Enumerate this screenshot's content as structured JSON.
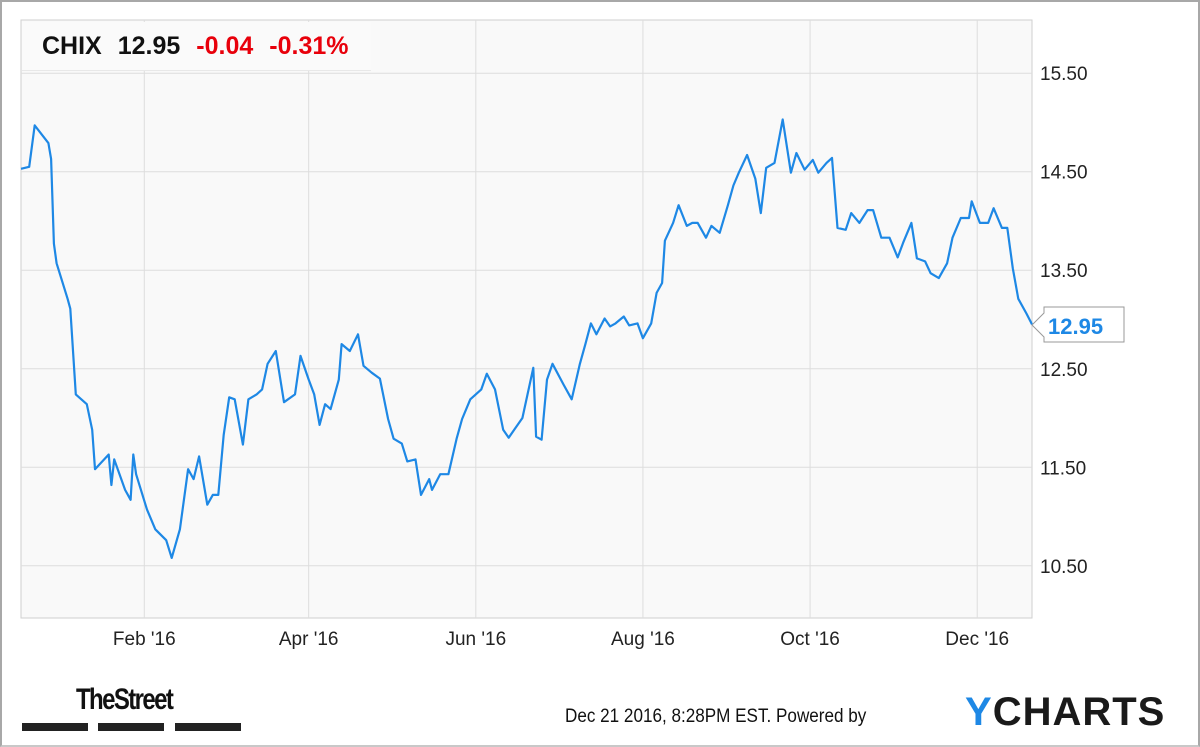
{
  "header": {
    "ticker": "CHIX",
    "price": "12.95",
    "change": "-0.04",
    "change_pct": "-0.31%"
  },
  "colors": {
    "line": "#1e88e5",
    "negative": "#e8000b",
    "grid": "#dddddd",
    "plot_bg": "#f9f9f9"
  },
  "footer": {
    "timestamp": "Dec 21 2016, 8:28PM EST.",
    "powered_by": "Powered by",
    "brand_y": "Y",
    "brand_rest": "CHARTS",
    "logo_text": "TheStreet"
  },
  "chart_data": {
    "type": "line",
    "title": "",
    "xlabel": "",
    "ylabel": "",
    "xlim": [
      "2015-12-18",
      "2016-12-21"
    ],
    "ylim": [
      9.97,
      16.04
    ],
    "grid": true,
    "y_axis_side": "right",
    "yticks": [
      "10.50",
      "11.50",
      "12.50",
      "13.50",
      "14.50",
      "15.50"
    ],
    "xticks": [
      {
        "date": "2016-02-01",
        "label": "Feb '16"
      },
      {
        "date": "2016-04-01",
        "label": "Apr '16"
      },
      {
        "date": "2016-06-01",
        "label": "Jun '16"
      },
      {
        "date": "2016-08-01",
        "label": "Aug '16"
      },
      {
        "date": "2016-10-01",
        "label": "Oct '16"
      },
      {
        "date": "2016-12-01",
        "label": "Dec '16"
      }
    ],
    "last_value_label": "12.95",
    "series": [
      {
        "points": [
          [
            "2015-12-18",
            14.53
          ],
          [
            "2015-12-21",
            14.55
          ],
          [
            "2015-12-23",
            14.97
          ],
          [
            "2015-12-28",
            14.79
          ],
          [
            "2015-12-29",
            14.63
          ],
          [
            "2015-12-30",
            13.77
          ],
          [
            "2015-12-31",
            13.57
          ],
          [
            "2016-01-04",
            13.21
          ],
          [
            "2016-01-05",
            13.11
          ],
          [
            "2016-01-07",
            12.24
          ],
          [
            "2016-01-11",
            12.14
          ],
          [
            "2016-01-13",
            11.88
          ],
          [
            "2016-01-14",
            11.48
          ],
          [
            "2016-01-19",
            11.63
          ],
          [
            "2016-01-20",
            11.32
          ],
          [
            "2016-01-21",
            11.58
          ],
          [
            "2016-01-25",
            11.27
          ],
          [
            "2016-01-27",
            11.17
          ],
          [
            "2016-01-28",
            11.63
          ],
          [
            "2016-01-29",
            11.43
          ],
          [
            "2016-02-02",
            11.07
          ],
          [
            "2016-02-05",
            10.87
          ],
          [
            "2016-02-09",
            10.76
          ],
          [
            "2016-02-11",
            10.58
          ],
          [
            "2016-02-14",
            10.87
          ],
          [
            "2016-02-17",
            11.48
          ],
          [
            "2016-02-19",
            11.38
          ],
          [
            "2016-02-21",
            11.61
          ],
          [
            "2016-02-24",
            11.12
          ],
          [
            "2016-02-26",
            11.22
          ],
          [
            "2016-02-28",
            11.22
          ],
          [
            "2016-03-01",
            11.83
          ],
          [
            "2016-03-03",
            12.21
          ],
          [
            "2016-03-05",
            12.19
          ],
          [
            "2016-03-08",
            11.73
          ],
          [
            "2016-03-10",
            12.19
          ],
          [
            "2016-03-13",
            12.24
          ],
          [
            "2016-03-15",
            12.29
          ],
          [
            "2016-03-17",
            12.55
          ],
          [
            "2016-03-20",
            12.68
          ],
          [
            "2016-03-23",
            12.16
          ],
          [
            "2016-03-27",
            12.24
          ],
          [
            "2016-03-29",
            12.63
          ],
          [
            "2016-04-01",
            12.39
          ],
          [
            "2016-04-03",
            12.24
          ],
          [
            "2016-04-05",
            11.93
          ],
          [
            "2016-04-07",
            12.14
          ],
          [
            "2016-04-09",
            12.09
          ],
          [
            "2016-04-12",
            12.39
          ],
          [
            "2016-04-13",
            12.75
          ],
          [
            "2016-04-16",
            12.68
          ],
          [
            "2016-04-19",
            12.85
          ],
          [
            "2016-04-21",
            12.53
          ],
          [
            "2016-04-24",
            12.46
          ],
          [
            "2016-04-27",
            12.4
          ],
          [
            "2016-04-30",
            11.99
          ],
          [
            "2016-05-02",
            11.79
          ],
          [
            "2016-05-05",
            11.74
          ],
          [
            "2016-05-07",
            11.56
          ],
          [
            "2016-05-10",
            11.58
          ],
          [
            "2016-05-12",
            11.22
          ],
          [
            "2016-05-15",
            11.38
          ],
          [
            "2016-05-16",
            11.27
          ],
          [
            "2016-05-19",
            11.43
          ],
          [
            "2016-05-22",
            11.43
          ],
          [
            "2016-05-25",
            11.79
          ],
          [
            "2016-05-27",
            11.99
          ],
          [
            "2016-05-30",
            12.19
          ],
          [
            "2016-06-03",
            12.29
          ],
          [
            "2016-06-05",
            12.45
          ],
          [
            "2016-06-08",
            12.29
          ],
          [
            "2016-06-11",
            11.88
          ],
          [
            "2016-06-13",
            11.8
          ],
          [
            "2016-06-15",
            11.88
          ],
          [
            "2016-06-18",
            12.0
          ],
          [
            "2016-06-22",
            12.51
          ],
          [
            "2016-06-23",
            11.81
          ],
          [
            "2016-06-25",
            11.78
          ],
          [
            "2016-06-27",
            12.39
          ],
          [
            "2016-06-29",
            12.55
          ],
          [
            "2016-07-03",
            12.34
          ],
          [
            "2016-07-06",
            12.19
          ],
          [
            "2016-07-09",
            12.55
          ],
          [
            "2016-07-11",
            12.75
          ],
          [
            "2016-07-13",
            12.96
          ],
          [
            "2016-07-15",
            12.85
          ],
          [
            "2016-07-18",
            13.01
          ],
          [
            "2016-07-20",
            12.93
          ],
          [
            "2016-07-22",
            12.96
          ],
          [
            "2016-07-25",
            13.03
          ],
          [
            "2016-07-27",
            12.94
          ],
          [
            "2016-07-30",
            12.96
          ],
          [
            "2016-08-01",
            12.81
          ],
          [
            "2016-08-04",
            12.96
          ],
          [
            "2016-08-06",
            13.27
          ],
          [
            "2016-08-08",
            13.37
          ],
          [
            "2016-08-09",
            13.8
          ],
          [
            "2016-08-12",
            13.98
          ],
          [
            "2016-08-14",
            14.16
          ],
          [
            "2016-08-17",
            13.95
          ],
          [
            "2016-08-19",
            13.98
          ],
          [
            "2016-08-21",
            13.98
          ],
          [
            "2016-08-24",
            13.83
          ],
          [
            "2016-08-26",
            13.95
          ],
          [
            "2016-08-29",
            13.88
          ],
          [
            "2016-09-01",
            14.16
          ],
          [
            "2016-09-03",
            14.36
          ],
          [
            "2016-09-05",
            14.49
          ],
          [
            "2016-09-08",
            14.67
          ],
          [
            "2016-09-11",
            14.43
          ],
          [
            "2016-09-13",
            14.08
          ],
          [
            "2016-09-15",
            14.54
          ],
          [
            "2016-09-18",
            14.59
          ],
          [
            "2016-09-21",
            15.03
          ],
          [
            "2016-09-24",
            14.49
          ],
          [
            "2016-09-26",
            14.69
          ],
          [
            "2016-09-29",
            14.52
          ],
          [
            "2016-10-02",
            14.62
          ],
          [
            "2016-10-04",
            14.49
          ],
          [
            "2016-10-07",
            14.59
          ],
          [
            "2016-10-09",
            14.64
          ],
          [
            "2016-10-11",
            13.93
          ],
          [
            "2016-10-14",
            13.91
          ],
          [
            "2016-10-16",
            14.08
          ],
          [
            "2016-10-19",
            13.98
          ],
          [
            "2016-10-22",
            14.11
          ],
          [
            "2016-10-24",
            14.11
          ],
          [
            "2016-10-27",
            13.83
          ],
          [
            "2016-10-30",
            13.83
          ],
          [
            "2016-11-02",
            13.63
          ],
          [
            "2016-11-04",
            13.78
          ],
          [
            "2016-11-07",
            13.98
          ],
          [
            "2016-11-09",
            13.62
          ],
          [
            "2016-11-12",
            13.59
          ],
          [
            "2016-11-14",
            13.47
          ],
          [
            "2016-11-17",
            13.42
          ],
          [
            "2016-11-20",
            13.57
          ],
          [
            "2016-11-22",
            13.83
          ],
          [
            "2016-11-25",
            14.03
          ],
          [
            "2016-11-28",
            14.03
          ],
          [
            "2016-11-29",
            14.2
          ],
          [
            "2016-12-02",
            13.98
          ],
          [
            "2016-12-05",
            13.98
          ],
          [
            "2016-12-07",
            14.13
          ],
          [
            "2016-12-10",
            13.93
          ],
          [
            "2016-12-12",
            13.93
          ],
          [
            "2016-12-14",
            13.52
          ],
          [
            "2016-12-16",
            13.21
          ],
          [
            "2016-12-19",
            13.06
          ],
          [
            "2016-12-21",
            12.95
          ]
        ]
      }
    ]
  }
}
